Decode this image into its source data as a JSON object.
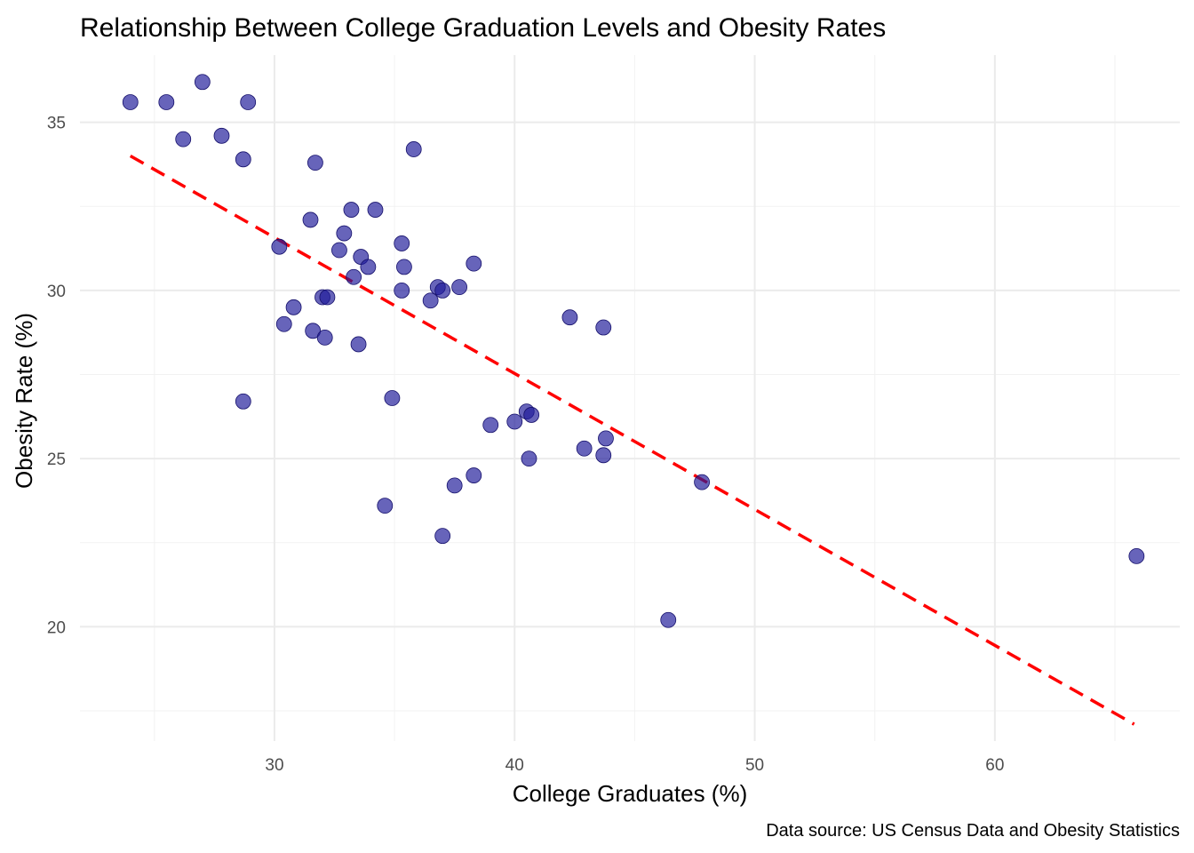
{
  "chart_data": {
    "type": "scatter",
    "title": "Relationship Between College Graduation Levels and Obesity Rates",
    "xlabel": "College Graduates (%)",
    "ylabel": "Obesity Rate (%)",
    "caption": "Data source: US Census Data and Obesity Statistics",
    "xlim": [
      21.9,
      67.7
    ],
    "ylim": [
      16.6,
      37.0
    ],
    "x_ticks": [
      30,
      40,
      50,
      60
    ],
    "y_ticks": [
      20,
      25,
      30,
      35
    ],
    "grid": true,
    "point_color": "#1f1a99",
    "trend_color": "#ff0000",
    "points": [
      {
        "x": 24.0,
        "y": 35.6
      },
      {
        "x": 25.5,
        "y": 35.6
      },
      {
        "x": 27.0,
        "y": 36.2
      },
      {
        "x": 28.9,
        "y": 35.6
      },
      {
        "x": 26.2,
        "y": 34.5
      },
      {
        "x": 27.8,
        "y": 34.6
      },
      {
        "x": 28.7,
        "y": 33.9
      },
      {
        "x": 31.7,
        "y": 33.8
      },
      {
        "x": 35.8,
        "y": 34.2
      },
      {
        "x": 31.5,
        "y": 32.1
      },
      {
        "x": 33.2,
        "y": 32.4
      },
      {
        "x": 34.2,
        "y": 32.4
      },
      {
        "x": 30.2,
        "y": 31.3
      },
      {
        "x": 32.9,
        "y": 31.7
      },
      {
        "x": 32.7,
        "y": 31.2
      },
      {
        "x": 33.6,
        "y": 31.0
      },
      {
        "x": 33.9,
        "y": 30.7
      },
      {
        "x": 33.3,
        "y": 30.4
      },
      {
        "x": 35.3,
        "y": 31.4
      },
      {
        "x": 35.4,
        "y": 30.7
      },
      {
        "x": 38.3,
        "y": 30.8
      },
      {
        "x": 35.3,
        "y": 30.0
      },
      {
        "x": 36.8,
        "y": 30.1
      },
      {
        "x": 37.0,
        "y": 30.0
      },
      {
        "x": 37.7,
        "y": 30.1
      },
      {
        "x": 36.5,
        "y": 29.7
      },
      {
        "x": 32.0,
        "y": 29.8
      },
      {
        "x": 32.2,
        "y": 29.8
      },
      {
        "x": 30.8,
        "y": 29.5
      },
      {
        "x": 30.4,
        "y": 29.0
      },
      {
        "x": 31.6,
        "y": 28.8
      },
      {
        "x": 32.1,
        "y": 28.6
      },
      {
        "x": 33.5,
        "y": 28.4
      },
      {
        "x": 42.3,
        "y": 29.2
      },
      {
        "x": 43.7,
        "y": 28.9
      },
      {
        "x": 28.7,
        "y": 26.7
      },
      {
        "x": 34.9,
        "y": 26.8
      },
      {
        "x": 39.0,
        "y": 26.0
      },
      {
        "x": 40.0,
        "y": 26.1
      },
      {
        "x": 40.5,
        "y": 26.4
      },
      {
        "x": 40.7,
        "y": 26.3
      },
      {
        "x": 43.8,
        "y": 25.6
      },
      {
        "x": 42.9,
        "y": 25.3
      },
      {
        "x": 43.7,
        "y": 25.1
      },
      {
        "x": 40.6,
        "y": 25.0
      },
      {
        "x": 47.8,
        "y": 24.3
      },
      {
        "x": 38.3,
        "y": 24.5
      },
      {
        "x": 37.5,
        "y": 24.2
      },
      {
        "x": 34.6,
        "y": 23.6
      },
      {
        "x": 37.0,
        "y": 22.7
      },
      {
        "x": 46.4,
        "y": 20.2
      },
      {
        "x": 65.9,
        "y": 22.1
      }
    ],
    "trend_line": {
      "x": [
        24.0,
        65.8
      ],
      "y": [
        34.0,
        17.1
      ]
    }
  }
}
